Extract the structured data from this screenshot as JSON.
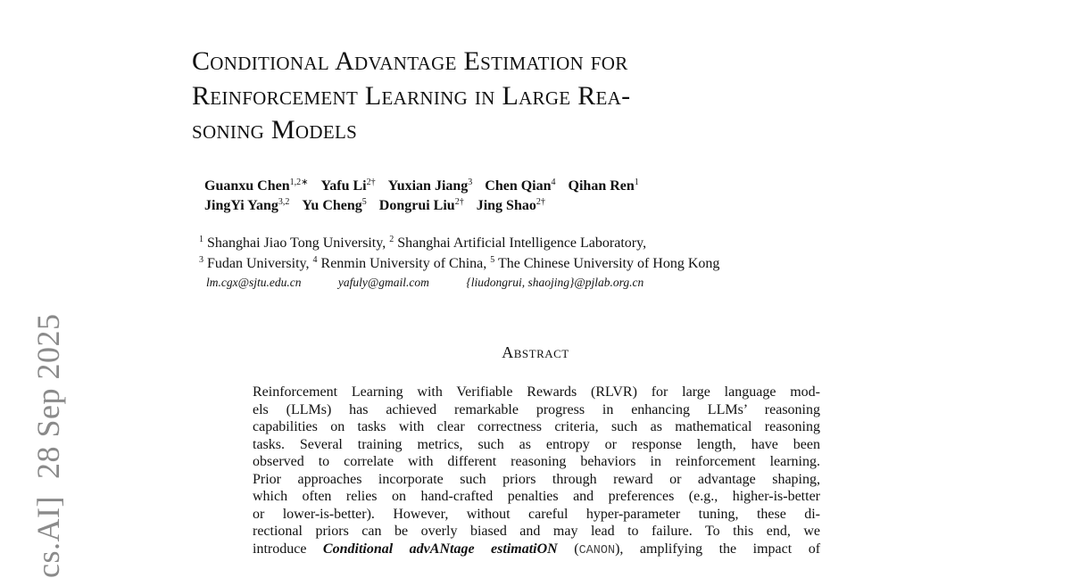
{
  "arxiv_stamp": "cs.AI]  28 Sep 2025",
  "title_lines": [
    "Conditional Advantage Estimation for",
    "Reinforcement Learning in Large Rea-",
    "soning Models"
  ],
  "authors": [
    [
      {
        "name": "Guanxu Chen",
        "sup": "1,2∗"
      },
      {
        "name": "Yafu Li",
        "sup": "2†"
      },
      {
        "name": "Yuxian Jiang",
        "sup": "3"
      },
      {
        "name": "Chen Qian",
        "sup": "4"
      },
      {
        "name": "Qihan Ren",
        "sup": "1"
      }
    ],
    [
      {
        "name": "JingYi Yang",
        "sup": "3,2"
      },
      {
        "name": "Yu Cheng",
        "sup": "5"
      },
      {
        "name": "Dongrui Liu",
        "sup": "2†"
      },
      {
        "name": "Jing Shao",
        "sup": "2†"
      }
    ]
  ],
  "affiliations": [
    [
      {
        "sup": "1",
        "text": " Shanghai Jiao Tong University, "
      },
      {
        "sup": "2",
        "text": " Shanghai Artificial Intelligence Laboratory,"
      }
    ],
    [
      {
        "sup": "3",
        "text": " Fudan University, "
      },
      {
        "sup": "4",
        "text": " Renmin University of China, "
      },
      {
        "sup": "5",
        "text": " The Chinese University of Hong Kong"
      }
    ]
  ],
  "emails": [
    "lm.cgx@sjtu.edu.cn",
    "yafuly@gmail.com",
    "{liudongrui, shaojing}@pjlab.org.cn"
  ],
  "abstract_heading": "Abstract",
  "abstract_lines": [
    "Reinforcement Learning with Verifiable Rewards (RLVR) for large language mod-",
    "els (LLMs) has achieved remarkable progress in enhancing LLMs’ reasoning",
    "capabilities on tasks with clear correctness criteria, such as mathematical reasoning",
    "tasks. Several training metrics, such as entropy or response length, have been",
    "observed to correlate with different reasoning behaviors in reinforcement learning.",
    "Prior approaches incorporate such priors through reward or advantage shaping,",
    "which often relies on hand-crafted penalties and preferences (e.g., higher-is-better",
    "or lower-is-better). However, without careful hyper-parameter tuning, these di-",
    "rectional priors can be overly biased and may lead to failure. To this end, we"
  ],
  "abstract_canon_line": {
    "pre": "introduce ",
    "i1": "Conditional adv",
    "b1": "AN",
    "i2": "tage estimati",
    "b2": "ON",
    "mid": " (",
    "mono": "CANON",
    "post": "), amplifying the impact of"
  }
}
